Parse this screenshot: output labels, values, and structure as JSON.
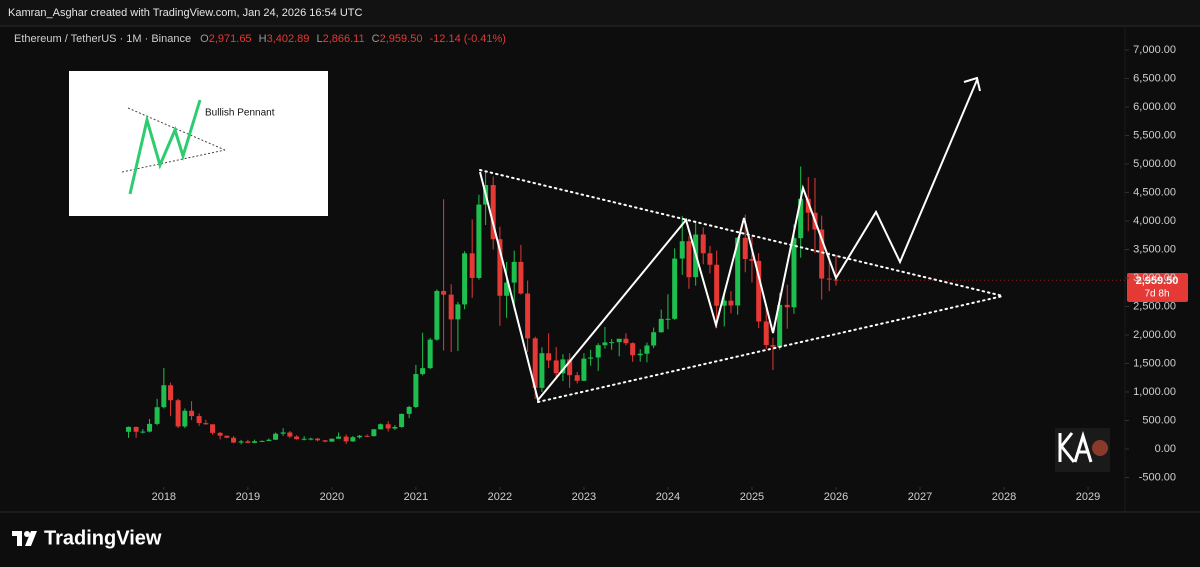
{
  "header": {
    "credit": "Kamran_Asghar created with TradingView.com, Jan 24, 2026 16:54 UTC"
  },
  "chart_data": {
    "type": "candlestick",
    "legend": {
      "symbol": "Ethereum / TetherUS · 1M · Binance",
      "fields": [
        {
          "key": "O",
          "text": "2,971.65"
        },
        {
          "key": "H",
          "text": "3,402.89"
        },
        {
          "key": "L",
          "text": "2,866.11"
        },
        {
          "key": "C",
          "text": "2,959.50"
        }
      ],
      "change": "-12.14 (-0.41%)"
    },
    "x": [
      2017.58,
      2017.67,
      2017.75,
      2017.83,
      2017.92,
      2018.0,
      2018.08,
      2018.17,
      2018.25,
      2018.33,
      2018.42,
      2018.5,
      2018.58,
      2018.67,
      2018.75,
      2018.83,
      2018.92,
      2019.0,
      2019.08,
      2019.17,
      2019.25,
      2019.33,
      2019.42,
      2019.5,
      2019.58,
      2019.67,
      2019.75,
      2019.83,
      2019.92,
      2020.0,
      2020.08,
      2020.17,
      2020.25,
      2020.33,
      2020.42,
      2020.5,
      2020.58,
      2020.67,
      2020.75,
      2020.83,
      2020.92,
      2021.0,
      2021.08,
      2021.17,
      2021.25,
      2021.33,
      2021.42,
      2021.5,
      2021.58,
      2021.67,
      2021.75,
      2021.83,
      2021.92,
      2022.0,
      2022.08,
      2022.17,
      2022.25,
      2022.33,
      2022.42,
      2022.5,
      2022.58,
      2022.67,
      2022.75,
      2022.83,
      2022.92,
      2023.0,
      2023.08,
      2023.17,
      2023.25,
      2023.33,
      2023.42,
      2023.5,
      2023.58,
      2023.67,
      2023.75,
      2023.83,
      2023.92,
      2024.0,
      2024.08,
      2024.17,
      2024.25,
      2024.33,
      2024.42,
      2024.5,
      2024.58,
      2024.67,
      2024.75,
      2024.83,
      2024.92,
      2025.0,
      2025.08,
      2025.17,
      2025.25,
      2025.33,
      2025.42,
      2025.5,
      2025.58,
      2025.67,
      2025.75,
      2025.83,
      2025.92,
      2026.0
    ],
    "open": [
      301,
      387,
      302,
      305,
      440,
      733,
      1118,
      855,
      395,
      670,
      577,
      454,
      433,
      283,
      233,
      197,
      113,
      133,
      107,
      135,
      141,
      162,
      268,
      290,
      218,
      172,
      180,
      182,
      152,
      129,
      180,
      217,
      133,
      206,
      231,
      225,
      345,
      434,
      359,
      386,
      616,
      737,
      1314,
      1418,
      1918,
      2772,
      2707,
      2273,
      2536,
      3433,
      3000,
      4288,
      4630,
      3680,
      2688,
      2919,
      3282,
      2727,
      1941,
      1072,
      1680,
      1553,
      1328,
      1572,
      1295,
      1196,
      1585,
      1605,
      1821,
      1869,
      1874,
      1934,
      1856,
      1645,
      1671,
      1815,
      2048,
      2282,
      2283,
      3340,
      3645,
      3014,
      3762,
      3433,
      3232,
      2513,
      2602,
      2518,
      3705,
      3333,
      3300,
      2237,
      1822,
      1793,
      2528,
      2486,
      3698,
      4390,
      4145,
      3850,
      2990,
      2971.65
    ],
    "high": [
      395,
      392,
      349,
      526,
      880,
      1420,
      1164,
      880,
      710,
      840,
      625,
      512,
      437,
      300,
      235,
      225,
      159,
      160,
      165,
      150,
      185,
      288,
      365,
      315,
      240,
      224,
      198,
      195,
      156,
      185,
      289,
      254,
      227,
      245,
      254,
      349,
      448,
      488,
      420,
      622,
      757,
      1475,
      2040,
      1948,
      2800,
      4380,
      2890,
      2580,
      3470,
      4028,
      4460,
      4870,
      4780,
      3900,
      3280,
      3480,
      3580,
      2955,
      1970,
      1785,
      2030,
      1790,
      1664,
      1680,
      1352,
      1680,
      1740,
      1855,
      2140,
      1930,
      1930,
      2030,
      1870,
      1750,
      1865,
      2130,
      2445,
      2715,
      3520,
      4090,
      3730,
      3980,
      3888,
      3560,
      3480,
      2730,
      2770,
      3720,
      4110,
      3745,
      3435,
      2550,
      1955,
      2740,
      2880,
      3940,
      4955,
      4770,
      4755,
      4095,
      3450,
      3402.89
    ],
    "low": [
      195,
      197,
      275,
      290,
      415,
      712,
      575,
      365,
      365,
      505,
      405,
      426,
      250,
      167,
      188,
      100,
      81,
      101,
      102,
      125,
      140,
      157,
      230,
      190,
      165,
      150,
      153,
      135,
      117,
      127,
      178,
      86,
      125,
      180,
      215,
      220,
      340,
      307,
      334,
      373,
      540,
      715,
      1290,
      1400,
      1900,
      1728,
      1700,
      1718,
      2450,
      2651,
      2970,
      3930,
      3500,
      2160,
      2300,
      2450,
      2710,
      1700,
      880,
      1000,
      1420,
      1220,
      1190,
      1073,
      1150,
      1190,
      1460,
      1370,
      1760,
      1740,
      1626,
      1820,
      1530,
      1530,
      1521,
      1770,
      2040,
      2100,
      2265,
      3055,
      2810,
      2865,
      3240,
      3080,
      2120,
      2150,
      2380,
      2355,
      3100,
      2920,
      2120,
      1755,
      1385,
      1740,
      2110,
      2370,
      3355,
      3820,
      3435,
      2620,
      2770,
      2866.11
    ],
    "close": [
      387,
      302,
      305,
      440,
      733,
      1118,
      855,
      395,
      670,
      577,
      454,
      433,
      283,
      233,
      197,
      113,
      133,
      107,
      135,
      141,
      162,
      268,
      290,
      218,
      172,
      180,
      182,
      152,
      129,
      180,
      217,
      133,
      206,
      231,
      225,
      345,
      434,
      359,
      386,
      616,
      737,
      1314,
      1418,
      1918,
      2772,
      2707,
      2273,
      2536,
      3433,
      3000,
      4288,
      4630,
      3680,
      2688,
      2919,
      3282,
      2727,
      1941,
      1072,
      1680,
      1553,
      1328,
      1572,
      1295,
      1196,
      1585,
      1605,
      1821,
      1869,
      1874,
      1934,
      1856,
      1645,
      1671,
      1815,
      2048,
      2282,
      2283,
      3340,
      3645,
      3014,
      3762,
      3433,
      3232,
      2513,
      2602,
      2518,
      3705,
      3333,
      3300,
      2237,
      1822,
      1793,
      2528,
      2486,
      3698,
      4390,
      4145,
      3850,
      2990,
      2971.65,
      2959.5
    ],
    "up_color": "#1fbf4f",
    "down_color": "#e53935",
    "xlim": [
      2016.05,
      2029.44
    ],
    "xticks": [
      2018,
      2019,
      2020,
      2021,
      2022,
      2023,
      2024,
      2025,
      2026,
      2027,
      2028,
      2029
    ],
    "ylim": [
      -632,
      7350
    ],
    "yticks": [
      {
        "value": 7000,
        "label": "7,000.00"
      },
      {
        "value": 6500,
        "label": "6,500.00"
      },
      {
        "value": 6000,
        "label": "6,000.00"
      },
      {
        "value": 5500,
        "label": "5,500.00"
      },
      {
        "value": 5000,
        "label": "5,000.00"
      },
      {
        "value": 4500,
        "label": "4,500.00"
      },
      {
        "value": 4000,
        "label": "4,000.00"
      },
      {
        "value": 3500,
        "label": "3,500.00"
      },
      {
        "value": 3000,
        "label": "3,000.00"
      },
      {
        "value": 2500,
        "label": "2,500.00"
      },
      {
        "value": 2000,
        "label": "2,000.00"
      },
      {
        "value": 1500,
        "label": "1,500.00"
      },
      {
        "value": 1000,
        "label": "1,000.00"
      },
      {
        "value": 500,
        "label": "500.00"
      },
      {
        "value": 0,
        "label": "0.00"
      },
      {
        "value": -500,
        "label": "-500.00"
      }
    ],
    "last_price": {
      "value": 2959.5,
      "label": "2,959.50",
      "countdown": "7d 8h"
    },
    "inset_label": "Bullish Pennant"
  },
  "footer": {
    "brand": "TradingView"
  }
}
